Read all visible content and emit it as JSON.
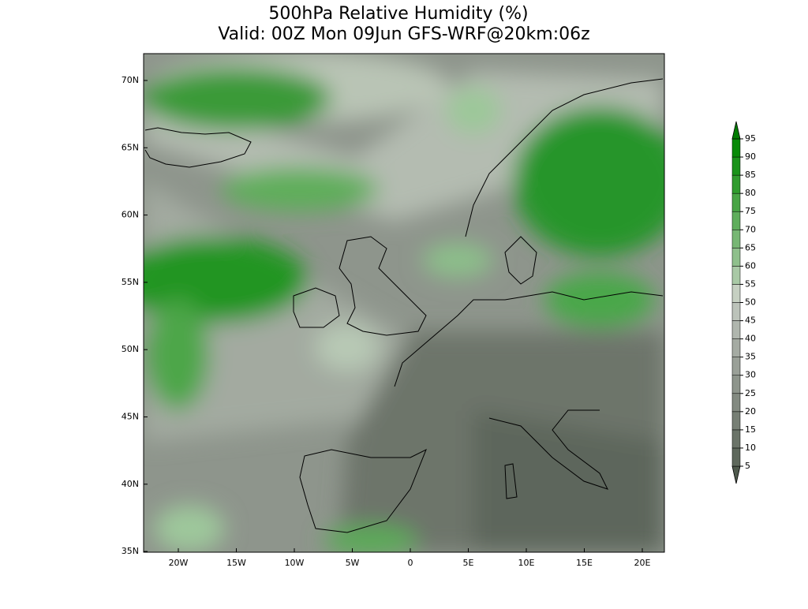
{
  "title": "500hPa Relative Humidity (%)",
  "subtitle": "Valid: 00Z Mon 09Jun GFS-WRF@20km:06z",
  "map": {
    "lat_labels": [
      "70N",
      "65N",
      "60N",
      "55N",
      "50N",
      "45N",
      "40N",
      "35N"
    ],
    "lon_labels": [
      "20W",
      "15W",
      "10W",
      "5W",
      "0",
      "5E",
      "10E",
      "15E",
      "20E"
    ]
  },
  "colorbar": {
    "levels": [
      5,
      10,
      15,
      20,
      25,
      30,
      35,
      40,
      45,
      50,
      55,
      60,
      65,
      70,
      75,
      80,
      85,
      90,
      95
    ],
    "colors": [
      "#4f5a4d",
      "#5e685c",
      "#6b7469",
      "#777f75",
      "#838a81",
      "#8e958c",
      "#9aa098",
      "#a5aba3",
      "#b0b6ae",
      "#bcc3ba",
      "#c6d0c2",
      "#a9c9a6",
      "#8fc08c",
      "#77b774",
      "#5fae5c",
      "#48a545",
      "#309c2e",
      "#1a931a",
      "#078a07",
      "#007d00"
    ]
  }
}
